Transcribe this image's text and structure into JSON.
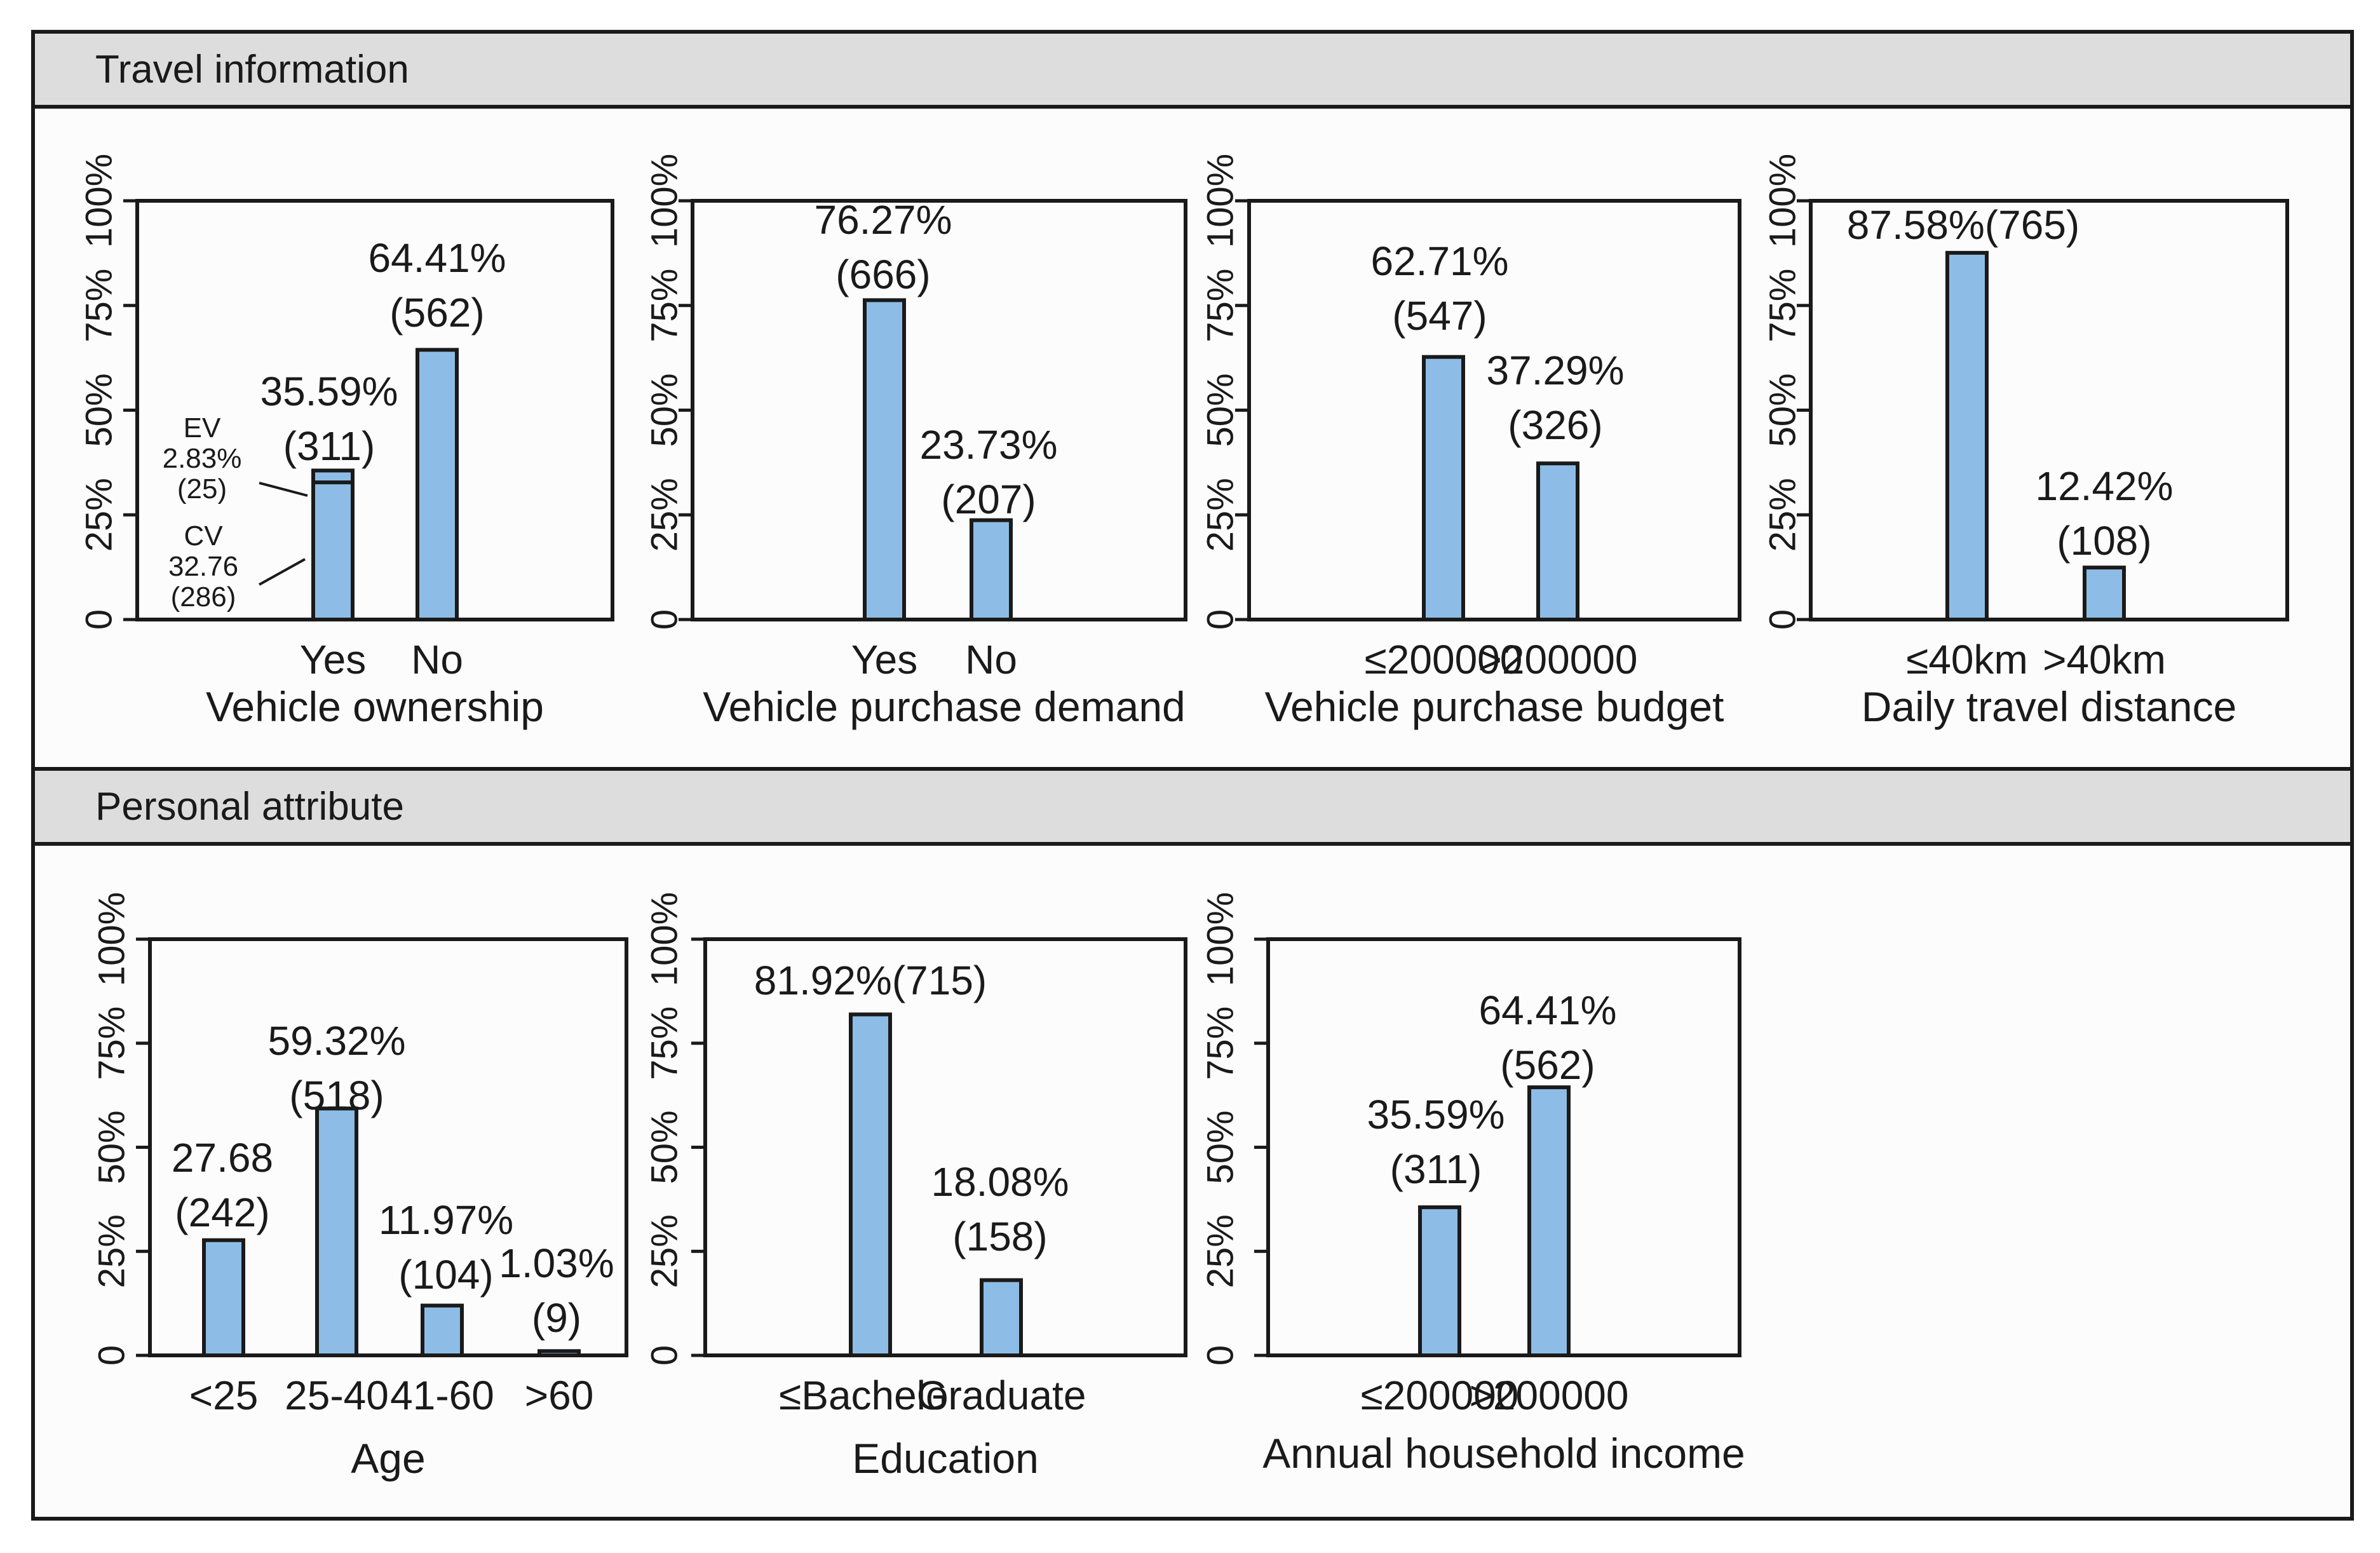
{
  "sections": [
    {
      "title": "Travel information"
    },
    {
      "title": "Personal attribute"
    }
  ],
  "colors": {
    "bar": "#8dbde6",
    "header_bg": "#dddddd",
    "stroke": "#1a1a1a"
  },
  "chart_data": [
    {
      "type": "bar",
      "section": "Travel information",
      "xlabel": "Vehicle ownership",
      "ylabel": "",
      "ylim": [
        0,
        100
      ],
      "yticks": [
        "0",
        "25%",
        "50%",
        "75%",
        "100%"
      ],
      "categories": [
        "Yes",
        "No"
      ],
      "values": [
        35.59,
        64.41
      ],
      "label_lines": [
        [
          "35.59%",
          "(311)"
        ],
        [
          "64.41%",
          "(562)"
        ]
      ],
      "stack_divider": {
        "category": "Yes",
        "value": 32.76
      },
      "annotations": [
        {
          "lines": [
            "EV",
            "2.83%",
            "(25)"
          ]
        },
        {
          "lines": [
            "CV",
            "32.76",
            "(286)"
          ]
        }
      ]
    },
    {
      "type": "bar",
      "section": "Travel information",
      "xlabel": "Vehicle purchase demand",
      "ylabel": "",
      "ylim": [
        0,
        100
      ],
      "yticks": [
        "0",
        "25%",
        "50%",
        "75%",
        "100%"
      ],
      "categories": [
        "Yes",
        "No"
      ],
      "values": [
        76.27,
        23.73
      ],
      "label_lines": [
        [
          "76.27%",
          "(666)"
        ],
        [
          "23.73%",
          "(207)"
        ]
      ]
    },
    {
      "type": "bar",
      "section": "Travel information",
      "xlabel": "Vehicle purchase budget",
      "ylabel": "",
      "ylim": [
        0,
        100
      ],
      "yticks": [
        "0",
        "25%",
        "50%",
        "75%",
        "100%"
      ],
      "categories": [
        "≤200000",
        ">200000"
      ],
      "values": [
        62.71,
        37.29
      ],
      "label_lines": [
        [
          "62.71%",
          "(547)"
        ],
        [
          "37.29%",
          "(326)"
        ]
      ]
    },
    {
      "type": "bar",
      "section": "Travel information",
      "xlabel": "Daily travel distance",
      "ylabel": "",
      "ylim": [
        0,
        100
      ],
      "yticks": [
        "0",
        "25%",
        "50%",
        "75%",
        "100%"
      ],
      "categories": [
        "≤40km",
        ">40km"
      ],
      "values": [
        87.58,
        12.42
      ],
      "label_lines": [
        [
          "87.58%(765)"
        ],
        [
          "12.42%",
          "(108)"
        ]
      ]
    },
    {
      "type": "bar",
      "section": "Personal attribute",
      "xlabel": "Age",
      "ylabel": "",
      "ylim": [
        0,
        100
      ],
      "yticks": [
        "0",
        "25%",
        "50%",
        "75%",
        "100%"
      ],
      "categories": [
        "<25",
        "25-40",
        "41-60",
        ">60"
      ],
      "values": [
        27.68,
        59.32,
        11.97,
        1.03
      ],
      "label_lines": [
        [
          "27.68",
          "(242)"
        ],
        [
          "59.32%",
          "(518)"
        ],
        [
          "11.97%",
          "(104)"
        ],
        [
          "1.03%",
          "(9)"
        ]
      ]
    },
    {
      "type": "bar",
      "section": "Personal attribute",
      "xlabel": "Education",
      "ylabel": "",
      "ylim": [
        0,
        100
      ],
      "yticks": [
        "0",
        "25%",
        "50%",
        "75%",
        "100%"
      ],
      "categories": [
        "≤Bachelor",
        "Graduate"
      ],
      "values": [
        81.92,
        18.08
      ],
      "label_lines": [
        [
          "81.92%(715)"
        ],
        [
          "18.08%",
          "(158)"
        ]
      ]
    },
    {
      "type": "bar",
      "section": "Personal attribute",
      "xlabel": "Annual household income",
      "ylabel": "",
      "ylim": [
        0,
        100
      ],
      "yticks": [
        "0",
        "25%",
        "50%",
        "75%",
        "100%"
      ],
      "categories": [
        "≤200000",
        ">200000"
      ],
      "values": [
        35.59,
        64.41
      ],
      "label_lines": [
        [
          "35.59%",
          "(311)"
        ],
        [
          "64.41%",
          "(562)"
        ]
      ]
    }
  ]
}
